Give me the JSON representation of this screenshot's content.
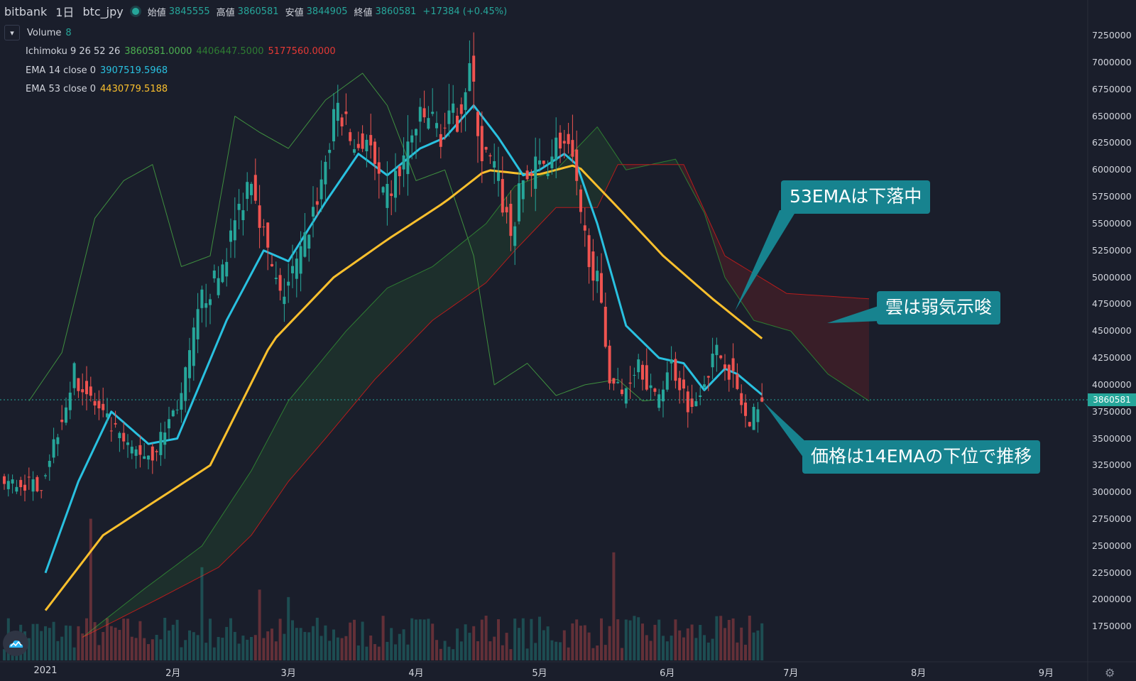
{
  "header": {
    "exchange": "bitbank",
    "interval": "1日",
    "symbol": "btc_jpy",
    "ohlc": [
      {
        "label": "始値",
        "value": "3845555"
      },
      {
        "label": "高値",
        "value": "3860581"
      },
      {
        "label": "安値",
        "value": "3844905"
      },
      {
        "label": "終値",
        "value": "3860581"
      }
    ],
    "change": "+17384 (+0.45%)"
  },
  "legend": {
    "volume": {
      "name": "Volume",
      "value": "8"
    },
    "ichimoku": {
      "name": "Ichimoku 9 26 52 26",
      "v1": "3860581.0000",
      "v2": "4406447.5000",
      "v3": "5177560.0000"
    },
    "ema14": {
      "name": "EMA 14 close 0",
      "value": "3907519.5968"
    },
    "ema53": {
      "name": "EMA 53 close 0",
      "value": "4430779.5188"
    }
  },
  "annotations": {
    "ema53_falling": "53EMAは下落中",
    "cloud_bearish": "雲は弱気示唆",
    "price_below_ema14": "価格は14EMAの下位で推移"
  },
  "current_price_label": "3860581",
  "colors": {
    "background": "#1a1e2b",
    "up": "#26a69a",
    "down": "#ef5350",
    "ema14": "#29c1e0",
    "ema53": "#fbc02d",
    "leading_span_a": "#2e7d32",
    "leading_span_b": "#b71c1c",
    "annotation_bg": "#17838f"
  },
  "icons": {
    "collapse": "chevron-down-icon",
    "logo": "cloud-logo-icon",
    "settings": "gear-icon"
  },
  "chart_data": {
    "type": "candlestick",
    "ylim": [
      1600000,
      7350000
    ],
    "y_ticks": [
      "7250000",
      "7000000",
      "6750000",
      "6500000",
      "6250000",
      "6000000",
      "5750000",
      "5500000",
      "5250000",
      "5000000",
      "4750000",
      "4500000",
      "4250000",
      "4000000",
      "3750000",
      "3500000",
      "3250000",
      "3000000",
      "2750000",
      "2500000",
      "2250000",
      "2000000",
      "1750000"
    ],
    "x_ticks": [
      "2021",
      "2月",
      "3月",
      "4月",
      "5月",
      "6月",
      "7月",
      "8月",
      "9月"
    ],
    "price_line": 3860581,
    "price_anchors": [
      {
        "date": "2021-01-01",
        "price": 3080000
      },
      {
        "date": "2021-01-09",
        "price": 4100000
      },
      {
        "date": "2021-01-15",
        "price": 3750000
      },
      {
        "date": "2021-01-22",
        "price": 3400000
      },
      {
        "date": "2021-01-28",
        "price": 3350000
      },
      {
        "date": "2021-02-04",
        "price": 3900000
      },
      {
        "date": "2021-02-09",
        "price": 4800000
      },
      {
        "date": "2021-02-13",
        "price": 5000000
      },
      {
        "date": "2021-02-21",
        "price": 6000000
      },
      {
        "date": "2021-02-25",
        "price": 5200000
      },
      {
        "date": "2021-02-28",
        "price": 4800000
      },
      {
        "date": "2021-03-05",
        "price": 5200000
      },
      {
        "date": "2021-03-10",
        "price": 5900000
      },
      {
        "date": "2021-03-14",
        "price": 6600000
      },
      {
        "date": "2021-03-18",
        "price": 6200000
      },
      {
        "date": "2021-03-21",
        "price": 6300000
      },
      {
        "date": "2021-03-25",
        "price": 5700000
      },
      {
        "date": "2021-03-28",
        "price": 5900000
      },
      {
        "date": "2021-04-02",
        "price": 6400000
      },
      {
        "date": "2021-04-05",
        "price": 6500000
      },
      {
        "date": "2021-04-08",
        "price": 6350000
      },
      {
        "date": "2021-04-12",
        "price": 6500000
      },
      {
        "date": "2021-04-15",
        "price": 6950000
      },
      {
        "date": "2021-04-18",
        "price": 6150000
      },
      {
        "date": "2021-04-21",
        "price": 6000000
      },
      {
        "date": "2021-04-25",
        "price": 5400000
      },
      {
        "date": "2021-04-28",
        "price": 5900000
      },
      {
        "date": "2021-05-01",
        "price": 6000000
      },
      {
        "date": "2021-05-04",
        "price": 6100000
      },
      {
        "date": "2021-05-07",
        "price": 6300000
      },
      {
        "date": "2021-05-10",
        "price": 6050000
      },
      {
        "date": "2021-05-12",
        "price": 5500000
      },
      {
        "date": "2021-05-16",
        "price": 4950000
      },
      {
        "date": "2021-05-19",
        "price": 4100000
      },
      {
        "date": "2021-05-22",
        "price": 3900000
      },
      {
        "date": "2021-05-26",
        "price": 4250000
      },
      {
        "date": "2021-05-30",
        "price": 3850000
      },
      {
        "date": "2021-06-03",
        "price": 4200000
      },
      {
        "date": "2021-06-08",
        "price": 3750000
      },
      {
        "date": "2021-06-10",
        "price": 4000000
      },
      {
        "date": "2021-06-14",
        "price": 4300000
      },
      {
        "date": "2021-06-16",
        "price": 4250000
      },
      {
        "date": "2021-06-19",
        "price": 3950000
      },
      {
        "date": "2021-06-22",
        "price": 3550000
      },
      {
        "date": "2021-06-24",
        "price": 3860581
      }
    ],
    "ema14_anchors": [
      {
        "date": "2021-01-01",
        "price": 2250000
      },
      {
        "date": "2021-01-09",
        "price": 3100000
      },
      {
        "date": "2021-01-17",
        "price": 3750000
      },
      {
        "date": "2021-01-26",
        "price": 3450000
      },
      {
        "date": "2021-02-02",
        "price": 3500000
      },
      {
        "date": "2021-02-14",
        "price": 4600000
      },
      {
        "date": "2021-02-23",
        "price": 5250000
      },
      {
        "date": "2021-03-01",
        "price": 5150000
      },
      {
        "date": "2021-03-10",
        "price": 5700000
      },
      {
        "date": "2021-03-18",
        "price": 6150000
      },
      {
        "date": "2021-03-25",
        "price": 5950000
      },
      {
        "date": "2021-04-02",
        "price": 6200000
      },
      {
        "date": "2021-04-08",
        "price": 6300000
      },
      {
        "date": "2021-04-15",
        "price": 6600000
      },
      {
        "date": "2021-04-21",
        "price": 6300000
      },
      {
        "date": "2021-04-27",
        "price": 5950000
      },
      {
        "date": "2021-05-01",
        "price": 6000000
      },
      {
        "date": "2021-05-07",
        "price": 6150000
      },
      {
        "date": "2021-05-10",
        "price": 6050000
      },
      {
        "date": "2021-05-15",
        "price": 5500000
      },
      {
        "date": "2021-05-22",
        "price": 4550000
      },
      {
        "date": "2021-05-30",
        "price": 4250000
      },
      {
        "date": "2021-06-05",
        "price": 4200000
      },
      {
        "date": "2021-06-10",
        "price": 3950000
      },
      {
        "date": "2021-06-15",
        "price": 4150000
      },
      {
        "date": "2021-06-18",
        "price": 4100000
      },
      {
        "date": "2021-06-24",
        "price": 3907519
      }
    ],
    "ema53_anchors": [
      {
        "date": "2021-01-01",
        "price": 1900000
      },
      {
        "date": "2021-01-15",
        "price": 2600000
      },
      {
        "date": "2021-01-31",
        "price": 3000000
      },
      {
        "date": "2021-02-10",
        "price": 3250000
      },
      {
        "date": "2021-02-25",
        "price": 4400000
      },
      {
        "date": "2021-03-12",
        "price": 5000000
      },
      {
        "date": "2021-03-25",
        "price": 5350000
      },
      {
        "date": "2021-04-08",
        "price": 5700000
      },
      {
        "date": "2021-04-18",
        "price": 6000000
      },
      {
        "date": "2021-04-30",
        "price": 5950000
      },
      {
        "date": "2021-05-10",
        "price": 6050000
      },
      {
        "date": "2021-05-20",
        "price": 5650000
      },
      {
        "date": "2021-05-31",
        "price": 5200000
      },
      {
        "date": "2021-06-12",
        "price": 4800000
      },
      {
        "date": "2021-06-24",
        "price": 4430779
      }
    ],
    "leading_span_a_anchors": [
      {
        "date": "2021-01-10",
        "price": 1650000
      },
      {
        "date": "2021-01-25",
        "price": 2100000
      },
      {
        "date": "2021-02-08",
        "price": 2500000
      },
      {
        "date": "2021-02-20",
        "price": 3200000
      },
      {
        "date": "2021-03-01",
        "price": 3850000
      },
      {
        "date": "2021-03-15",
        "price": 4500000
      },
      {
        "date": "2021-03-25",
        "price": 4900000
      },
      {
        "date": "2021-04-05",
        "price": 5100000
      },
      {
        "date": "2021-04-18",
        "price": 5500000
      },
      {
        "date": "2021-04-25",
        "price": 5850000
      },
      {
        "date": "2021-05-05",
        "price": 6000000
      },
      {
        "date": "2021-05-15",
        "price": 6400000
      },
      {
        "date": "2021-05-22",
        "price": 6000000
      },
      {
        "date": "2021-06-03",
        "price": 6100000
      },
      {
        "date": "2021-06-10",
        "price": 5600000
      },
      {
        "date": "2021-06-15",
        "price": 5000000
      },
      {
        "date": "2021-06-22",
        "price": 4600000
      },
      {
        "date": "2021-07-01",
        "price": 4500000
      },
      {
        "date": "2021-07-10",
        "price": 4100000
      },
      {
        "date": "2021-07-20",
        "price": 3850000
      }
    ],
    "leading_span_b_anchors": [
      {
        "date": "2021-01-10",
        "price": 1650000
      },
      {
        "date": "2021-01-28",
        "price": 2000000
      },
      {
        "date": "2021-02-12",
        "price": 2300000
      },
      {
        "date": "2021-02-20",
        "price": 2600000
      },
      {
        "date": "2021-03-01",
        "price": 3100000
      },
      {
        "date": "2021-03-10",
        "price": 3500000
      },
      {
        "date": "2021-03-22",
        "price": 4050000
      },
      {
        "date": "2021-04-05",
        "price": 4600000
      },
      {
        "date": "2021-04-18",
        "price": 4950000
      },
      {
        "date": "2021-04-25",
        "price": 5250000
      },
      {
        "date": "2021-05-05",
        "price": 5650000
      },
      {
        "date": "2021-05-15",
        "price": 5650000
      },
      {
        "date": "2021-05-20",
        "price": 6050000
      },
      {
        "date": "2021-06-05",
        "price": 6050000
      },
      {
        "date": "2021-06-15",
        "price": 5200000
      },
      {
        "date": "2021-06-30",
        "price": 4850000
      },
      {
        "date": "2021-07-20",
        "price": 4800000
      }
    ],
    "lagging_span_anchors": [
      {
        "date": "2020-12-28",
        "price": 3850000
      },
      {
        "date": "2021-01-05",
        "price": 4300000
      },
      {
        "date": "2021-01-13",
        "price": 5550000
      },
      {
        "date": "2021-01-20",
        "price": 5900000
      },
      {
        "date": "2021-01-27",
        "price": 6050000
      },
      {
        "date": "2021-02-03",
        "price": 5100000
      },
      {
        "date": "2021-02-10",
        "price": 5200000
      },
      {
        "date": "2021-02-16",
        "price": 6500000
      },
      {
        "date": "2021-02-22",
        "price": 6350000
      },
      {
        "date": "2021-03-01",
        "price": 6200000
      },
      {
        "date": "2021-03-10",
        "price": 6650000
      },
      {
        "date": "2021-03-19",
        "price": 6900000
      },
      {
        "date": "2021-03-25",
        "price": 6600000
      },
      {
        "date": "2021-04-01",
        "price": 5900000
      },
      {
        "date": "2021-04-08",
        "price": 6000000
      },
      {
        "date": "2021-04-15",
        "price": 5200000
      },
      {
        "date": "2021-04-20",
        "price": 4000000
      },
      {
        "date": "2021-04-28",
        "price": 4200000
      },
      {
        "date": "2021-05-05",
        "price": 3900000
      },
      {
        "date": "2021-05-12",
        "price": 4000000
      },
      {
        "date": "2021-05-20",
        "price": 4050000
      },
      {
        "date": "2021-05-26",
        "price": 3850000
      },
      {
        "date": "2021-05-29",
        "price": 3860000
      }
    ],
    "volume_peaks": [
      {
        "date": "2021-01-12",
        "value": 0.38
      },
      {
        "date": "2021-02-08",
        "value": 0.25
      },
      {
        "date": "2021-02-22",
        "value": 0.19
      },
      {
        "date": "2021-03-01",
        "value": 0.17
      },
      {
        "date": "2021-04-18",
        "value": 0.12
      },
      {
        "date": "2021-05-10",
        "value": 0.11
      },
      {
        "date": "2021-05-19",
        "value": 0.29
      },
      {
        "date": "2021-06-21",
        "value": 0.12
      }
    ]
  }
}
